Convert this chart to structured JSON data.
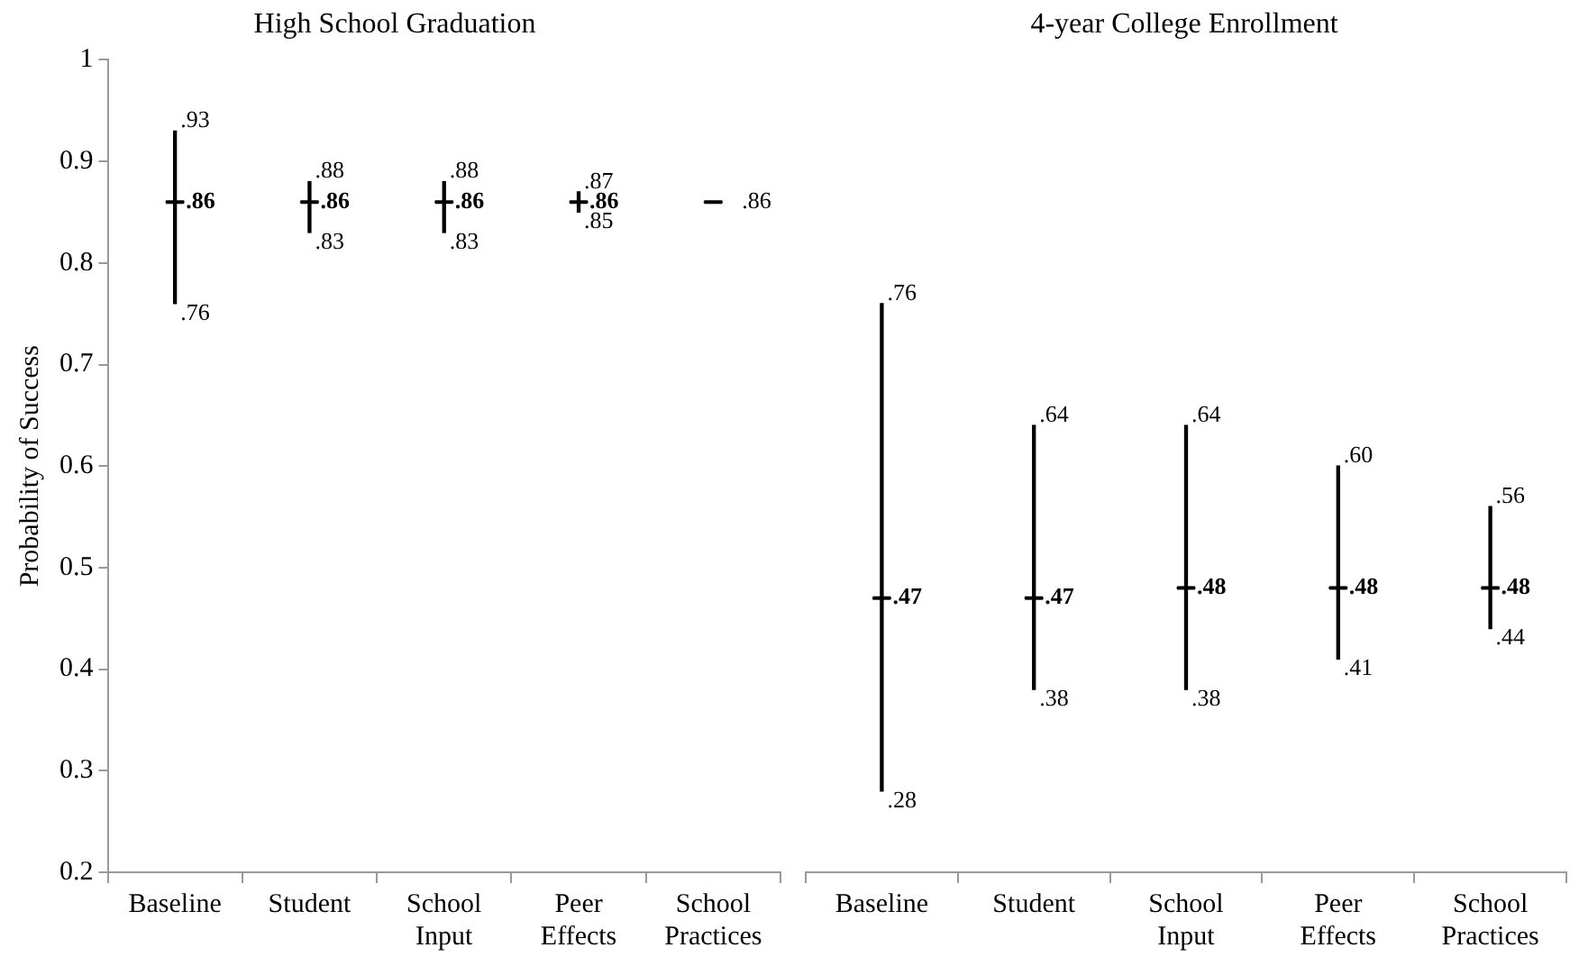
{
  "chart_data": [
    {
      "type": "box",
      "title": "High School Graduation",
      "ylabel": "Probability of Success",
      "color": "#000000",
      "categories": [
        "Baseline",
        "Student",
        "School Input",
        "Peer Effects",
        "School Practices"
      ],
      "boxes": [
        {
          "low": 0.76,
          "q1": 0.86,
          "median": 0.86,
          "q3": 0.86,
          "high": 0.93
        },
        {
          "low": 0.83,
          "q1": 0.86,
          "median": 0.86,
          "q3": 0.86,
          "high": 0.88
        },
        {
          "low": 0.83,
          "q1": 0.86,
          "median": 0.86,
          "q3": 0.86,
          "high": 0.88
        },
        {
          "low": 0.85,
          "q1": 0.86,
          "median": 0.86,
          "q3": 0.86,
          "high": 0.87
        },
        {
          "low": 0.86,
          "q1": 0.86,
          "median": 0.86,
          "q3": 0.86,
          "high": 0.86
        }
      ],
      "ylim": [
        0.2,
        1
      ],
      "yticks": [
        0.2,
        0.3,
        0.4,
        0.5,
        0.6,
        0.7,
        0.8,
        0.9,
        1
      ],
      "annotations": [
        {
          "text": ".93",
          "x": "Baseline",
          "y": 0.93
        },
        {
          "text": ".86",
          "x": "Baseline",
          "y": 0.86
        },
        {
          "text": ".76",
          "x": "Baseline",
          "y": 0.76
        },
        {
          "text": ".88",
          "x": "Student",
          "y": 0.88
        },
        {
          "text": ".86",
          "x": "Student",
          "y": 0.86
        },
        {
          "text": ".83",
          "x": "Student",
          "y": 0.83
        },
        {
          "text": ".88",
          "x": "School Input",
          "y": 0.88
        },
        {
          "text": ".86",
          "x": "School Input",
          "y": 0.86
        },
        {
          "text": ".83",
          "x": "School Input",
          "y": 0.83
        },
        {
          "text": ".87",
          "x": "Peer Effects",
          "y": 0.87
        },
        {
          "text": ".86",
          "x": "Peer Effects",
          "y": 0.86
        },
        {
          "text": ".85",
          "x": "Peer Effects",
          "y": 0.85
        },
        {
          "text": ".86",
          "x": "School Practices",
          "y": 0.86
        }
      ]
    },
    {
      "type": "box",
      "title": "4-year College Enrollment",
      "color": "#000000",
      "categories": [
        "Baseline",
        "Student",
        "School Input",
        "Peer Effects",
        "School Practices"
      ],
      "boxes": [
        {
          "low": 0.28,
          "q1": 0.47,
          "median": 0.47,
          "q3": 0.47,
          "high": 0.76
        },
        {
          "low": 0.38,
          "q1": 0.47,
          "median": 0.47,
          "q3": 0.47,
          "high": 0.64
        },
        {
          "low": 0.38,
          "q1": 0.48,
          "median": 0.48,
          "q3": 0.48,
          "high": 0.64
        },
        {
          "low": 0.41,
          "q1": 0.48,
          "median": 0.48,
          "q3": 0.48,
          "high": 0.6
        },
        {
          "low": 0.44,
          "q1": 0.48,
          "median": 0.48,
          "q3": 0.48,
          "high": 0.56
        }
      ],
      "ylim": [
        0.2,
        1
      ],
      "yticks": [
        0.2,
        0.3,
        0.4,
        0.5,
        0.6,
        0.7,
        0.8,
        0.9,
        1
      ],
      "tick_labels": "x",
      "annotations": [
        {
          "text": ".76",
          "x": "Baseline",
          "y": 0.76
        },
        {
          "text": ".47",
          "x": "Baseline",
          "y": 0.47
        },
        {
          "text": ".28",
          "x": "Baseline",
          "y": 0.28
        },
        {
          "text": ".64",
          "x": "Student",
          "y": 0.64
        },
        {
          "text": ".47",
          "x": "Student",
          "y": 0.47
        },
        {
          "text": ".38",
          "x": "Student",
          "y": 0.38
        },
        {
          "text": ".64",
          "x": "School Input",
          "y": 0.64
        },
        {
          "text": ".48",
          "x": "School Input",
          "y": 0.48
        },
        {
          "text": ".38",
          "x": "School Input",
          "y": 0.38
        },
        {
          "text": ".60",
          "x": "Peer Effects",
          "y": 0.6
        },
        {
          "text": ".48",
          "x": "Peer Effects",
          "y": 0.48
        },
        {
          "text": ".41",
          "x": "Peer Effects",
          "y": 0.41
        },
        {
          "text": ".56",
          "x": "School Practices",
          "y": 0.56
        },
        {
          "text": ".48",
          "x": "School Practices",
          "y": 0.48
        },
        {
          "text": ".44",
          "x": "School Practices",
          "y": 0.44
        }
      ]
    }
  ]
}
